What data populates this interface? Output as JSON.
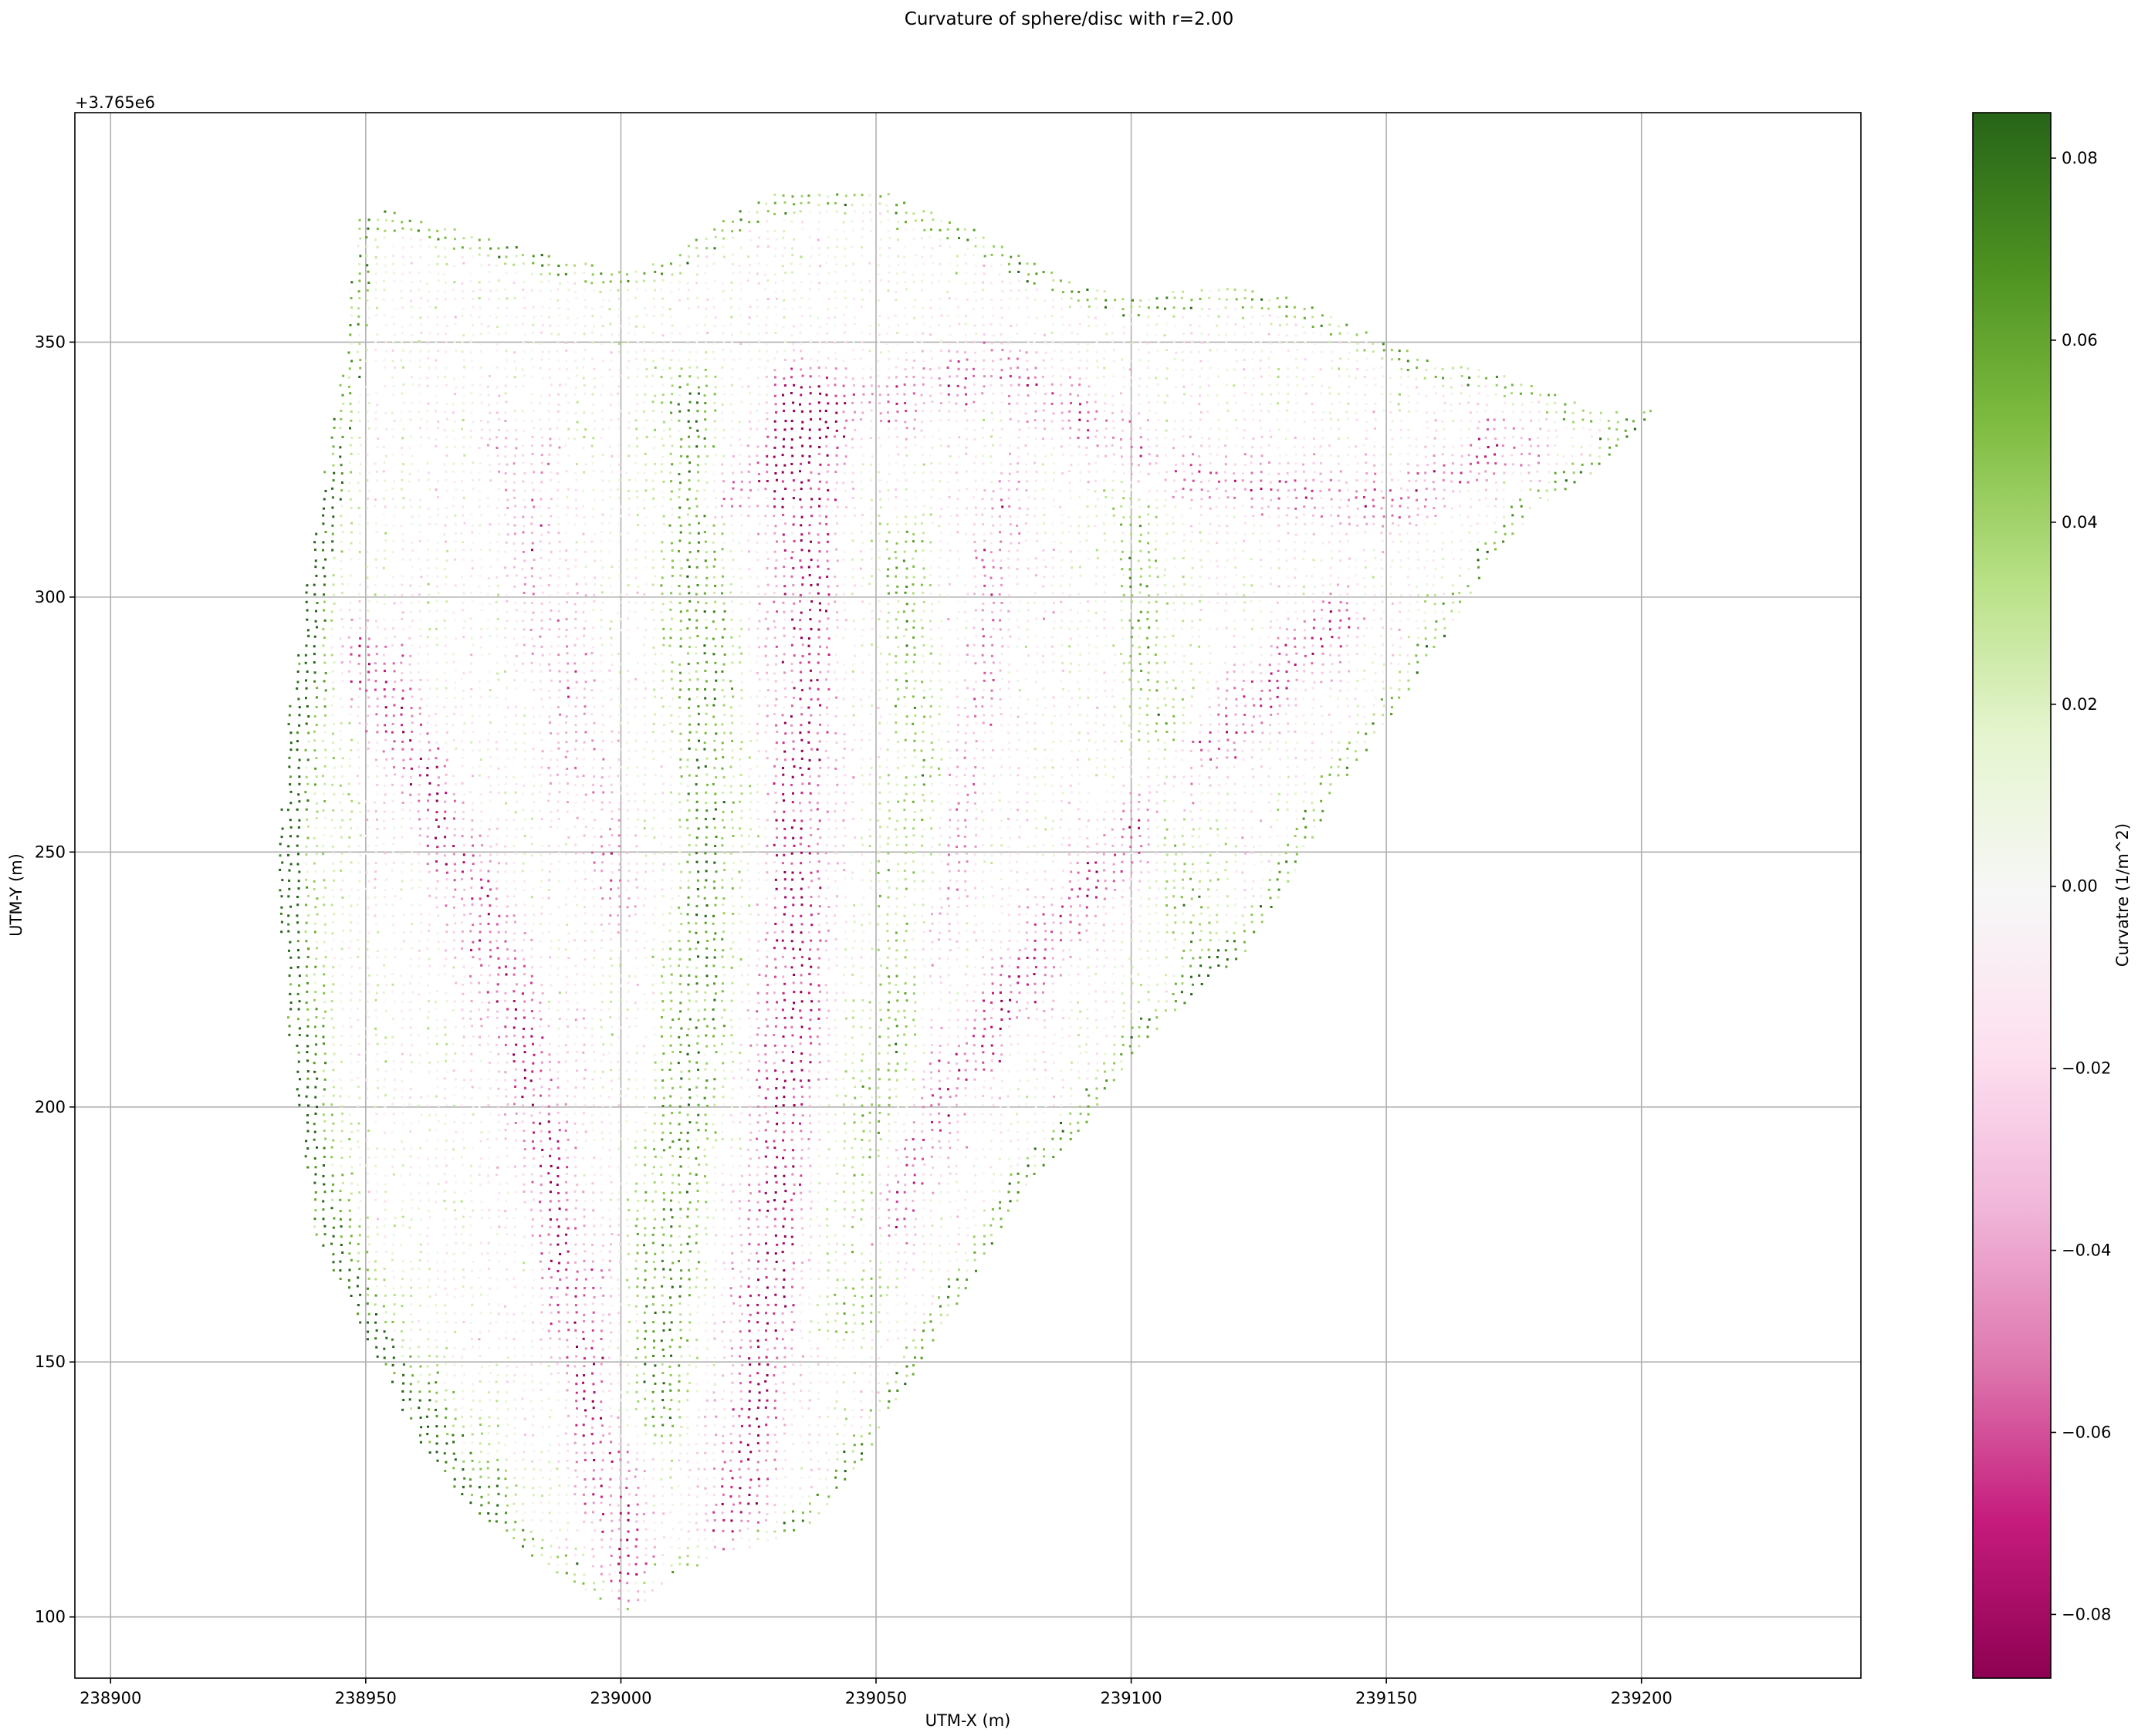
{
  "chart_data": {
    "type": "scatter",
    "title": "Curvature of sphere/disc with r=2.00",
    "xlabel": "UTM-X (m)",
    "ylabel": "UTM-Y (m)",
    "offset_label": "+3.765e6",
    "xlim": [
      238893,
      239243
    ],
    "ylim": [
      88,
      395
    ],
    "xticks": [
      238900,
      238950,
      239000,
      239050,
      239100,
      239150,
      239200
    ],
    "xtick_labels": [
      "238900",
      "238950",
      "239000",
      "239050",
      "239100",
      "239150",
      "239200"
    ],
    "yticks": [
      100,
      150,
      200,
      250,
      300,
      350
    ],
    "ytick_labels": [
      "100",
      "150",
      "200",
      "250",
      "300",
      "350"
    ],
    "grid": true,
    "colorbar": {
      "label": "Curvatre (1/m^2)",
      "range": [
        -0.087,
        0.085
      ],
      "ticks": [
        -0.08,
        -0.06,
        -0.04,
        -0.02,
        0.0,
        0.02,
        0.04,
        0.06,
        0.08
      ],
      "tick_labels": [
        "−0.08",
        "−0.06",
        "−0.04",
        "−0.02",
        "0.00",
        "0.02",
        "0.04",
        "0.06",
        "0.08"
      ],
      "colormap": "PiYG",
      "stops": [
        "#8e0152",
        "#c51b7d",
        "#de77ae",
        "#f1b6da",
        "#fde0ef",
        "#f7f7f7",
        "#e6f5d0",
        "#b8e186",
        "#7fbc41",
        "#4d9221",
        "#276419"
      ]
    },
    "boundary": [
      [
        238948,
        375
      ],
      [
        238955,
        376
      ],
      [
        238965,
        373
      ],
      [
        238978,
        369
      ],
      [
        238990,
        366
      ],
      [
        239000,
        364
      ],
      [
        239010,
        367
      ],
      [
        239020,
        374
      ],
      [
        239030,
        379
      ],
      [
        239040,
        380
      ],
      [
        239050,
        380
      ],
      [
        239060,
        376
      ],
      [
        239070,
        372
      ],
      [
        239080,
        366
      ],
      [
        239090,
        361
      ],
      [
        239100,
        359
      ],
      [
        239110,
        360
      ],
      [
        239120,
        361
      ],
      [
        239130,
        359
      ],
      [
        239140,
        355
      ],
      [
        239150,
        350
      ],
      [
        239160,
        346
      ],
      [
        239170,
        345
      ],
      [
        239180,
        341
      ],
      [
        239190,
        337
      ],
      [
        239198,
        336
      ],
      [
        239204,
        337
      ],
      [
        239197,
        331
      ],
      [
        239190,
        324
      ],
      [
        239180,
        318
      ],
      [
        239170,
        306
      ],
      [
        239160,
        290
      ],
      [
        239150,
        275
      ],
      [
        239140,
        262
      ],
      [
        239132,
        245
      ],
      [
        239122,
        230
      ],
      [
        239110,
        220
      ],
      [
        239100,
        210
      ],
      [
        239090,
        195
      ],
      [
        239080,
        185
      ],
      [
        239070,
        168
      ],
      [
        239060,
        152
      ],
      [
        239050,
        135
      ],
      [
        239040,
        120
      ],
      [
        239030,
        115
      ],
      [
        239020,
        112
      ],
      [
        239010,
        108
      ],
      [
        239005,
        103
      ],
      [
        239000,
        101
      ],
      [
        238995,
        104
      ],
      [
        238985,
        110
      ],
      [
        238970,
        122
      ],
      [
        238960,
        135
      ],
      [
        238950,
        155
      ],
      [
        238940,
        175
      ],
      [
        238937,
        200
      ],
      [
        238934,
        220
      ],
      [
        238933,
        245
      ],
      [
        238934,
        270
      ],
      [
        238938,
        300
      ],
      [
        238942,
        325
      ],
      [
        238946,
        350
      ],
      [
        238948,
        375
      ]
    ],
    "valleys": [
      {
        "points": [
          [
            238950,
            290
          ],
          [
            238968,
            250
          ],
          [
            238980,
            215
          ],
          [
            238988,
            180
          ],
          [
            238995,
            140
          ],
          [
            239003,
            104
          ]
        ],
        "strength": -0.07
      },
      {
        "points": [
          [
            239036,
            340
          ],
          [
            239036,
            300
          ],
          [
            239035,
            260
          ],
          [
            239034,
            220
          ],
          [
            239030,
            180
          ],
          [
            239026,
            140
          ],
          [
            239022,
            115
          ]
        ],
        "strength": -0.085
      },
      {
        "points": [
          [
            239140,
            295
          ],
          [
            239110,
            265
          ],
          [
            239085,
            235
          ],
          [
            239065,
            205
          ],
          [
            239050,
            175
          ]
        ],
        "strength": -0.065
      },
      {
        "points": [
          [
            239020,
            320
          ],
          [
            239040,
            335
          ],
          [
            239075,
            345
          ],
          [
            239105,
            325
          ],
          [
            239150,
            318
          ],
          [
            239175,
            330
          ]
        ],
        "strength": -0.055
      },
      {
        "points": [
          [
            239075,
            320
          ],
          [
            239070,
            290
          ],
          [
            239066,
            260
          ],
          [
            239060,
            230
          ]
        ],
        "strength": -0.045
      },
      {
        "points": [
          [
            238980,
            330
          ],
          [
            238985,
            300
          ],
          [
            238992,
            270
          ],
          [
            239000,
            240
          ]
        ],
        "strength": -0.04
      }
    ],
    "ridges": [
      {
        "points": [
          [
            239013,
            340
          ],
          [
            239015,
            300
          ],
          [
            239018,
            260
          ],
          [
            239015,
            220
          ],
          [
            239010,
            180
          ],
          [
            239006,
            140
          ]
        ],
        "strength": 0.07
      },
      {
        "points": [
          [
            238940,
            320
          ],
          [
            238938,
            270
          ],
          [
            238936,
            230
          ],
          [
            238942,
            180
          ],
          [
            238955,
            150
          ],
          [
            238975,
            125
          ]
        ],
        "strength": 0.06
      },
      {
        "points": [
          [
            239165,
            285
          ],
          [
            239160,
            250
          ],
          [
            239150,
            225
          ],
          [
            239135,
            210
          ]
        ],
        "strength": 0.06
      },
      {
        "points": [
          [
            239055,
            310
          ],
          [
            239060,
            270
          ],
          [
            239055,
            230
          ],
          [
            239048,
            190
          ],
          [
            239045,
            160
          ]
        ],
        "strength": 0.05
      },
      {
        "points": [
          [
            239100,
            320
          ],
          [
            239105,
            285
          ],
          [
            239110,
            250
          ],
          [
            239115,
            225
          ]
        ],
        "strength": 0.045
      }
    ],
    "points_note": "scatter of ~3.4 m grid of LiDAR points colored by curvature; points generated from boundary, valley and ridge features"
  }
}
